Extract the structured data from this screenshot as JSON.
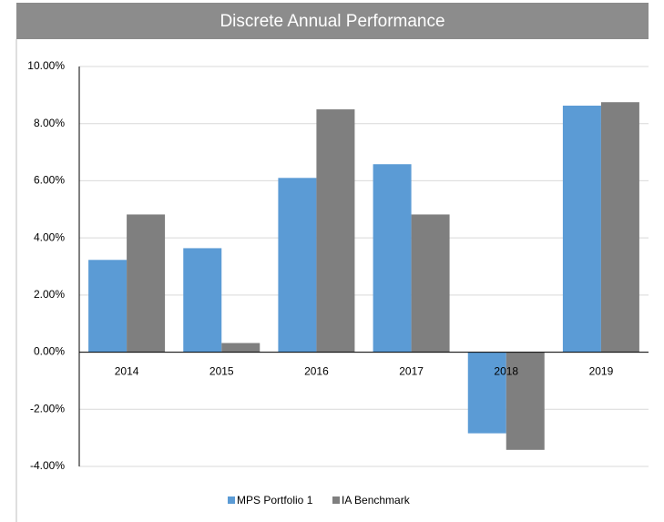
{
  "chart_data": {
    "type": "bar",
    "title": "Discrete Annual Performance",
    "categories": [
      "2014",
      "2015",
      "2016",
      "2017",
      "2018",
      "2019"
    ],
    "series": [
      {
        "name": "MPS Portfolio 1",
        "color": "#5b9bd5",
        "values": [
          3.23,
          3.64,
          6.1,
          6.58,
          -2.84,
          8.63
        ]
      },
      {
        "name": "IA Benchmark",
        "color": "#7f7f7f",
        "values": [
          4.82,
          0.32,
          8.5,
          4.82,
          -3.42,
          8.75
        ]
      }
    ],
    "ylim": [
      -4,
      10
    ],
    "yticks": [
      {
        "value": -4,
        "label": "-4.00%"
      },
      {
        "value": -2,
        "label": "-2.00%"
      },
      {
        "value": 0,
        "label": "0.00%"
      },
      {
        "value": 2,
        "label": "2.00%"
      },
      {
        "value": 4,
        "label": "4.00%"
      },
      {
        "value": 6,
        "label": "6.00%"
      },
      {
        "value": 8,
        "label": "8.00%"
      },
      {
        "value": 10,
        "label": "10.00%"
      }
    ],
    "grid": true,
    "legend": "bottom"
  }
}
